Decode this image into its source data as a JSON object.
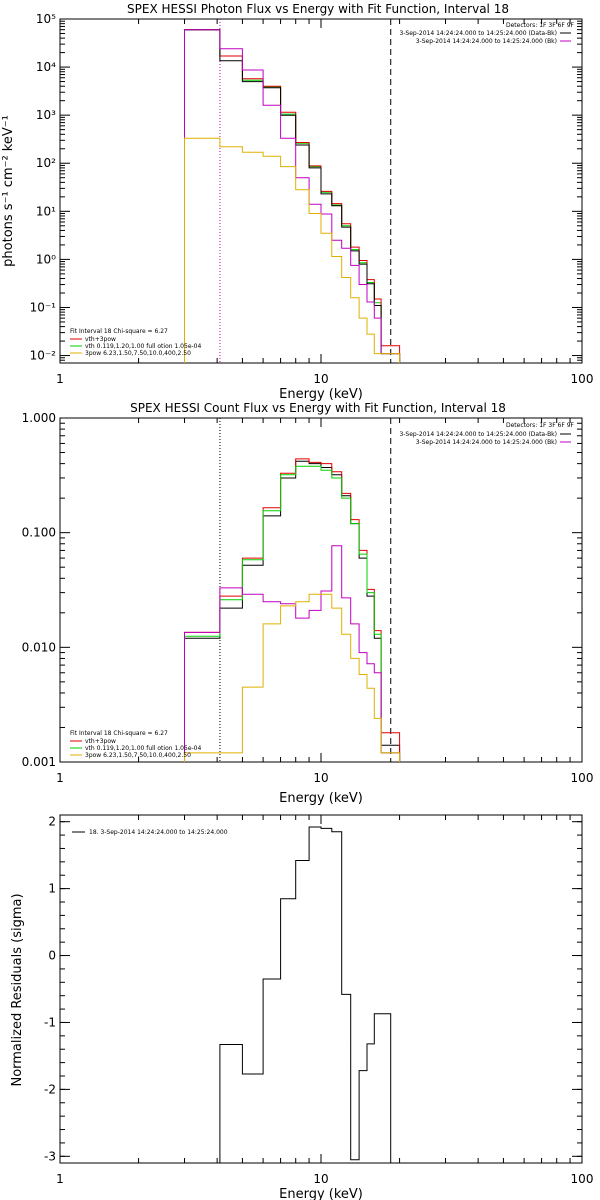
{
  "chart_data": [
    {
      "type": "line",
      "title": "SPEX HESSI Photon Flux vs Energy with Fit Function, Interval 18",
      "xlabel": "Energy (keV)",
      "ylabel": "photons s⁻¹ cm⁻² keV⁻¹",
      "xscale": "log",
      "yscale": "log",
      "xlim": [
        1,
        100
      ],
      "ylim": [
        0.007,
        100000
      ],
      "x_ticks": [
        "1",
        "10",
        "100"
      ],
      "y_ticks": [
        "10⁻²",
        "10⁻¹",
        "10⁰",
        "10¹",
        "10²",
        "10³",
        "10⁴",
        "10⁵"
      ],
      "grid": false,
      "vlines": [
        {
          "x": 4.1,
          "style": "dotted",
          "color": "#c000c0"
        },
        {
          "x": 18.5,
          "style": "dashed",
          "color": "#000000"
        }
      ],
      "legend_top_right": {
        "header": "Detectors: 1F 3F 6F 9F",
        "entries": [
          {
            "text": "3-Sep-2014 14:24:24.000 to 14:25:24.000 (Data-Bk)",
            "color": "#000000"
          },
          {
            "text": "3-Sep-2014 14:24:24.000 to 14:25:24.000 (Bk)",
            "color": "#c000c0"
          }
        ]
      },
      "legend_bottom_left": {
        "header": "Fit Interval 18   Chi-square = 6.27",
        "entries": [
          {
            "text": "vth+3pow",
            "color": "#e00000"
          },
          {
            "text": "vth 0.119,1.20,1.00  full otion 1.05e-04",
            "color": "#00d000"
          },
          {
            "text": "3pow  6.23,1.50,7.50,10.0,400,2.50",
            "color": "#e0b000"
          }
        ]
      },
      "edges": [
        3.0,
        4.1,
        5.0,
        6.0,
        7.0,
        8.0,
        9.0,
        10.0,
        11.0,
        12.0,
        13.0,
        14.0,
        15.0,
        16.0,
        17.0,
        18.5,
        20.0
      ],
      "series": [
        {
          "color": "#00d000",
          "values": [
            60000,
            17000,
            5300,
            3900,
            1050,
            260,
            85,
            25,
            13.5,
            5.0,
            1.6,
            0.85,
            0.33,
            0.125,
            0.011,
            0.011
          ]
        },
        {
          "color": "#e00000",
          "values": [
            60000,
            17000,
            5700,
            4000,
            1150,
            270,
            88,
            26,
            14.5,
            5.5,
            1.8,
            0.95,
            0.38,
            0.15,
            0.016,
            0.016
          ]
        },
        {
          "color": "#000000",
          "values": [
            60000,
            13500,
            5000,
            3700,
            1000,
            240,
            80,
            23,
            13,
            4.7,
            1.5,
            0.8,
            0.31,
            0.11,
            0.011,
            0.011
          ]
        },
        {
          "color": "#c000c0",
          "values": [
            60000,
            24000,
            8700,
            1600,
            330,
            50,
            14,
            8.8,
            2.5,
            1.7,
            0.75,
            0.3,
            0.13,
            0.06,
            0.011,
            0.011
          ]
        },
        {
          "color": "#e0b000",
          "values": [
            330,
            220,
            170,
            140,
            85,
            28,
            9,
            3.5,
            1.15,
            0.42,
            0.16,
            0.06,
            0.028,
            0.011,
            0.011,
            0.011
          ]
        }
      ]
    },
    {
      "type": "line",
      "title": "SPEX HESSI Count Flux vs Energy with Fit Function, Interval 18",
      "xlabel": "Energy (keV)",
      "ylabel": "",
      "xscale": "log",
      "yscale": "log",
      "xlim": [
        1,
        100
      ],
      "ylim": [
        0.001,
        1.0
      ],
      "x_ticks": [
        "1",
        "10",
        "100"
      ],
      "y_ticks": [
        "0.001",
        "0.010",
        "0.100",
        "1.000"
      ],
      "grid": false,
      "vlines": [
        {
          "x": 4.1,
          "style": "dotted",
          "color": "#000000"
        },
        {
          "x": 18.5,
          "style": "dashed",
          "color": "#000000"
        }
      ],
      "legend_top_right": {
        "header": "Detectors: 1F 3F 6F 9F",
        "entries": [
          {
            "text": "3-Sep-2014 14:24:24.000 to 14:25:24.000 (Data-Bk)",
            "color": "#000000"
          },
          {
            "text": "3-Sep-2014 14:24:24.000 to 14:25:24.000 (Bk)",
            "color": "#c000c0"
          }
        ]
      },
      "legend_bottom_left": {
        "header": "Fit Interval 18   Chi-square = 6.27",
        "entries": [
          {
            "text": "vth+3pow",
            "color": "#e00000"
          },
          {
            "text": "vth 0.119,1.20,1.00  full otion 1.05e-04",
            "color": "#00d000"
          },
          {
            "text": "3pow  6.23,1.50,7.50,10.0,400,2.50",
            "color": "#e0b000"
          }
        ]
      },
      "edges": [
        3.0,
        4.1,
        5.0,
        6.0,
        7.0,
        8.0,
        9.0,
        10.0,
        11.0,
        12.0,
        13.0,
        14.0,
        15.0,
        16.0,
        17.0,
        18.5,
        20.0
      ],
      "series": [
        {
          "color": "#000000",
          "values": [
            0.012,
            0.022,
            0.052,
            0.14,
            0.3,
            0.42,
            0.4,
            0.37,
            0.32,
            0.21,
            0.12,
            0.06,
            0.028,
            0.012,
            0.0014,
            0.0014
          ]
        },
        {
          "color": "#e00000",
          "values": [
            0.0135,
            0.028,
            0.06,
            0.165,
            0.33,
            0.44,
            0.41,
            0.4,
            0.34,
            0.22,
            0.13,
            0.07,
            0.032,
            0.014,
            0.0018,
            0.0018
          ]
        },
        {
          "color": "#00d000",
          "values": [
            0.0125,
            0.026,
            0.058,
            0.155,
            0.32,
            0.38,
            0.38,
            0.35,
            0.3,
            0.2,
            0.12,
            0.065,
            0.03,
            0.013,
            0.0012,
            0.0012
          ]
        },
        {
          "color": "#c000c0",
          "values": [
            0.0135,
            0.033,
            0.029,
            0.025,
            0.024,
            0.018,
            0.021,
            0.031,
            0.077,
            0.027,
            0.016,
            0.009,
            0.0072,
            0.006,
            0.0012,
            0.0012
          ]
        },
        {
          "color": "#e0b000",
          "values": [
            0.0012,
            0.0012,
            0.0045,
            0.016,
            0.023,
            0.025,
            0.029,
            0.029,
            0.022,
            0.013,
            0.008,
            0.0058,
            0.0044,
            0.0024,
            0.0012,
            0.0012
          ]
        }
      ]
    },
    {
      "type": "line",
      "title": "",
      "xlabel": "Energy (keV)",
      "ylabel": "Normalized Residuals (sigma)",
      "xscale": "log",
      "yscale": "linear",
      "xlim": [
        1,
        100
      ],
      "ylim": [
        -3.1,
        2.1
      ],
      "x_ticks": [
        "1",
        "10",
        "100"
      ],
      "y_ticks": [
        "-3",
        "-2",
        "-1",
        "0",
        "1",
        "2"
      ],
      "grid": false,
      "legend": [
        {
          "text": "18.  3-Sep-2014 14:24:24.000 to 14:25:24.000",
          "color": "#000000"
        }
      ],
      "edges": [
        4.1,
        5.0,
        6.0,
        7.0,
        8.0,
        9.0,
        10.0,
        11.0,
        12.0,
        13.0,
        14.0,
        15.0,
        16.0,
        17.0,
        18.5
      ],
      "series": [
        {
          "color": "#000000",
          "values": [
            -1.33,
            -1.77,
            -0.35,
            0.85,
            1.42,
            1.92,
            1.9,
            1.85,
            -0.58,
            -3.05,
            -1.72,
            -1.32,
            -0.87,
            -0.87
          ]
        }
      ]
    }
  ]
}
